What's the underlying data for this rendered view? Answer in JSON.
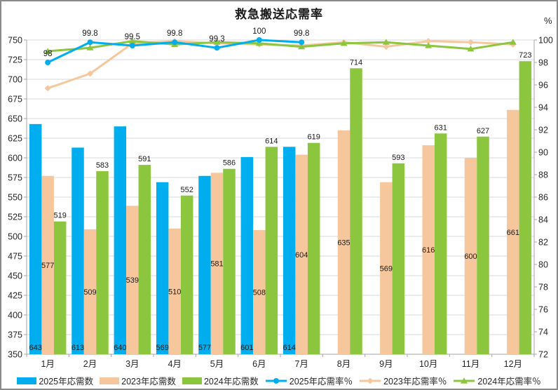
{
  "title": "救急搬送応需率",
  "right_axis_unit": "%",
  "chart_data": {
    "type": "bar+line",
    "categories": [
      "1月",
      "2月",
      "3月",
      "4月",
      "5月",
      "6月",
      "7月",
      "8月",
      "9月",
      "10月",
      "11月",
      "12月"
    ],
    "bar_series": [
      {
        "name": "2025年応需数",
        "color": "#00AEEF",
        "label_position": "inside-base",
        "values": [
          643,
          613,
          640,
          569,
          577,
          601,
          614,
          null,
          null,
          null,
          null,
          null
        ]
      },
      {
        "name": "2023年応需数",
        "color": "#F6C79C",
        "label_position": "center",
        "values": [
          577,
          509,
          539,
          510,
          581,
          508,
          604,
          635,
          569,
          616,
          600,
          661
        ]
      },
      {
        "name": "2024年応需数",
        "color": "#8CC63F",
        "label_position": "outside-end",
        "values": [
          519,
          583,
          591,
          552,
          586,
          614,
          619,
          714,
          593,
          631,
          627,
          723
        ]
      }
    ],
    "line_series": [
      {
        "name": "2023年応需率％",
        "color": "#F6C79C",
        "marker": "diamond",
        "values": [
          95.7,
          97.0,
          99.7,
          99.9,
          99.7,
          99.6,
          99.5,
          99.8,
          99.4,
          99.9,
          99.8,
          99.6
        ]
      },
      {
        "name": "2024年応需率％",
        "color": "#8CC63F",
        "marker": "triangle",
        "values": [
          99.0,
          99.3,
          99.9,
          99.6,
          99.8,
          99.7,
          99.4,
          99.7,
          99.8,
          99.5,
          99.2,
          99.8
        ]
      },
      {
        "name": "2025年応需率％",
        "color": "#00AEEF",
        "marker": "circle",
        "values": [
          98,
          99.8,
          99.5,
          99.8,
          99.3,
          100,
          99.8,
          null,
          null,
          null,
          null,
          null
        ],
        "labels": [
          "98",
          "99.8",
          "99.5",
          "99.8",
          "99.3",
          "100",
          "99.8",
          null,
          null,
          null,
          null,
          null
        ]
      }
    ],
    "legend_order": [
      "2025年応需数",
      "2023年応需数",
      "2024年応需数",
      "2025年応需率％",
      "2023年応需率％",
      "2024年応需率％"
    ],
    "left_axis": {
      "min": 350,
      "max": 750,
      "step": 25
    },
    "right_axis": {
      "min": 72,
      "max": 100,
      "step": 2
    },
    "grid": true,
    "legend_position": "bottom"
  },
  "colors": {
    "gridline": "#D9D9D9",
    "axis_line": "#A6A6A6",
    "border": "#8a8a8a"
  }
}
